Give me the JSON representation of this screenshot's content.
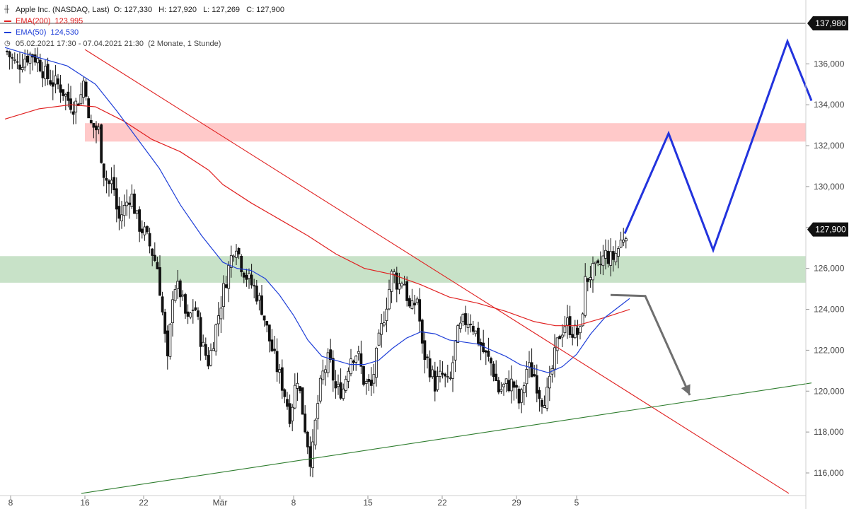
{
  "header": {
    "title": "Apple Inc. (NASDAQ, Last)",
    "ohlc": {
      "open": "O: 127,330",
      "high": "H: 127,920",
      "low": "L: 127,269",
      "close": "C: 127,900"
    },
    "ema200": {
      "label": "EMA(200)",
      "value": "123,995",
      "color": "#e02020"
    },
    "ema50": {
      "label": "EMA(50)",
      "value": "124,530",
      "color": "#1f3fd8"
    },
    "range": "05.02.2021 17:30 - 07.04.2021 21:30",
    "period": "(2 Monate, 1 Stunde)"
  },
  "price_tags": {
    "top": "137,980",
    "last": "127,900"
  },
  "colors": {
    "resistance_zone": "#ffc9c9",
    "support_zone": "#c8e2c8",
    "downtrend": "#e02020",
    "uptrend": "#2e7d2e",
    "bull_projection": "#2233dd",
    "bear_projection": "#6f6f6f",
    "candles": "#111111",
    "tag_bg": "#111111"
  },
  "chart_data": {
    "type": "line",
    "instrument": "Apple Inc. (NASDAQ, Last)",
    "ylim": [
      115000,
      138500
    ],
    "yticks": [
      116000,
      118000,
      120000,
      122000,
      124000,
      126000,
      128000,
      130000,
      132000,
      134000,
      136000
    ],
    "ytick_labels": [
      "116,000",
      "118,000",
      "120,000",
      "122,000",
      "124,000",
      "126,000",
      "128,000",
      "130,000",
      "132,000",
      "134,000",
      "136,000"
    ],
    "xticks": [
      {
        "label": "8",
        "t": 0
      },
      {
        "label": "16",
        "t": 105
      },
      {
        "label": "22",
        "t": 188
      },
      {
        "label": "Mär",
        "t": 296
      },
      {
        "label": "8",
        "t": 400
      },
      {
        "label": "15",
        "t": 505
      },
      {
        "label": "22",
        "t": 610
      },
      {
        "label": "29",
        "t": 715
      },
      {
        "label": "5",
        "t": 800
      }
    ],
    "t_range": [
      -8,
      1132
    ],
    "zones": [
      {
        "name": "resistance",
        "y0": 132200,
        "y1": 133100
      },
      {
        "name": "support",
        "y0": 125300,
        "y1": 126600
      }
    ],
    "reference_line": 137980,
    "close_path": [
      [
        -5,
        136600
      ],
      [
        0,
        136300
      ],
      [
        10,
        135900
      ],
      [
        20,
        136300
      ],
      [
        30,
        136500
      ],
      [
        40,
        136100
      ],
      [
        50,
        135400
      ],
      [
        60,
        135100
      ],
      [
        70,
        134900
      ],
      [
        80,
        134300
      ],
      [
        90,
        133900
      ],
      [
        100,
        134500
      ],
      [
        105,
        135600
      ],
      [
        110,
        133100
      ],
      [
        118,
        132900
      ],
      [
        125,
        132700
      ],
      [
        130,
        130900
      ],
      [
        138,
        130100
      ],
      [
        145,
        130200
      ],
      [
        152,
        128300
      ],
      [
        160,
        128900
      ],
      [
        170,
        129700
      ],
      [
        180,
        128200
      ],
      [
        190,
        127700
      ],
      [
        200,
        126800
      ],
      [
        208,
        126000
      ],
      [
        215,
        123700
      ],
      [
        222,
        121300
      ],
      [
        230,
        125300
      ],
      [
        240,
        124800
      ],
      [
        250,
        123300
      ],
      [
        260,
        124300
      ],
      [
        270,
        122300
      ],
      [
        280,
        121400
      ],
      [
        290,
        123100
      ],
      [
        300,
        124800
      ],
      [
        310,
        126300
      ],
      [
        318,
        127400
      ],
      [
        325,
        126300
      ],
      [
        335,
        125500
      ],
      [
        345,
        125000
      ],
      [
        355,
        124100
      ],
      [
        365,
        122600
      ],
      [
        375,
        121300
      ],
      [
        385,
        120200
      ],
      [
        395,
        118800
      ],
      [
        405,
        120800
      ],
      [
        415,
        118500
      ],
      [
        425,
        116400
      ],
      [
        432,
        118900
      ],
      [
        440,
        120700
      ],
      [
        450,
        121600
      ],
      [
        460,
        120000
      ],
      [
        470,
        120100
      ],
      [
        480,
        121700
      ],
      [
        490,
        121900
      ],
      [
        500,
        120400
      ],
      [
        510,
        120200
      ],
      [
        520,
        122300
      ],
      [
        530,
        124100
      ],
      [
        540,
        125900
      ],
      [
        548,
        125100
      ],
      [
        555,
        125600
      ],
      [
        565,
        123800
      ],
      [
        575,
        124600
      ],
      [
        582,
        122000
      ],
      [
        590,
        121400
      ],
      [
        600,
        120300
      ],
      [
        610,
        120800
      ],
      [
        620,
        120200
      ],
      [
        630,
        122600
      ],
      [
        640,
        123400
      ],
      [
        650,
        123500
      ],
      [
        660,
        122600
      ],
      [
        670,
        121800
      ],
      [
        680,
        121300
      ],
      [
        690,
        120000
      ],
      [
        700,
        120300
      ],
      [
        710,
        120400
      ],
      [
        720,
        119300
      ],
      [
        730,
        121200
      ],
      [
        740,
        120800
      ],
      [
        750,
        119600
      ],
      [
        760,
        119900
      ],
      [
        765,
        121000
      ],
      [
        775,
        122700
      ],
      [
        785,
        123400
      ],
      [
        795,
        122900
      ],
      [
        805,
        122800
      ],
      [
        812,
        125300
      ],
      [
        820,
        125800
      ],
      [
        830,
        125900
      ],
      [
        840,
        126700
      ],
      [
        850,
        126400
      ],
      [
        858,
        126900
      ],
      [
        865,
        127500
      ],
      [
        870,
        127900
      ]
    ],
    "ohlc_last": {
      "open": 127330,
      "high": 127920,
      "low": 127269,
      "close": 127900
    },
    "series": [
      {
        "name": "EMA(200)",
        "last": 123995,
        "points": [
          [
            -8,
            133300
          ],
          [
            40,
            133800
          ],
          [
            85,
            134000
          ],
          [
            120,
            133900
          ],
          [
            160,
            133200
          ],
          [
            200,
            132300
          ],
          [
            240,
            131700
          ],
          [
            280,
            130800
          ],
          [
            300,
            130100
          ],
          [
            340,
            129200
          ],
          [
            380,
            128400
          ],
          [
            420,
            127600
          ],
          [
            460,
            126700
          ],
          [
            500,
            126000
          ],
          [
            540,
            125700
          ],
          [
            580,
            125200
          ],
          [
            620,
            124600
          ],
          [
            660,
            124300
          ],
          [
            700,
            123900
          ],
          [
            740,
            123400
          ],
          [
            770,
            123200
          ],
          [
            800,
            123200
          ],
          [
            840,
            123600
          ],
          [
            875,
            123995
          ]
        ]
      },
      {
        "name": "EMA(50)",
        "last": 124530,
        "points": [
          [
            -8,
            136800
          ],
          [
            40,
            136300
          ],
          [
            80,
            135900
          ],
          [
            120,
            135000
          ],
          [
            150,
            133700
          ],
          [
            180,
            132300
          ],
          [
            210,
            130900
          ],
          [
            240,
            129100
          ],
          [
            270,
            127600
          ],
          [
            300,
            126300
          ],
          [
            320,
            126000
          ],
          [
            340,
            125900
          ],
          [
            360,
            125500
          ],
          [
            380,
            124700
          ],
          [
            400,
            123700
          ],
          [
            420,
            122500
          ],
          [
            440,
            121700
          ],
          [
            460,
            121500
          ],
          [
            480,
            121300
          ],
          [
            500,
            121300
          ],
          [
            520,
            121500
          ],
          [
            540,
            122100
          ],
          [
            560,
            122600
          ],
          [
            580,
            122900
          ],
          [
            600,
            122800
          ],
          [
            620,
            122500
          ],
          [
            640,
            122400
          ],
          [
            660,
            122300
          ],
          [
            680,
            122000
          ],
          [
            700,
            121700
          ],
          [
            720,
            121300
          ],
          [
            740,
            121100
          ],
          [
            760,
            120900
          ],
          [
            780,
            121200
          ],
          [
            800,
            121800
          ],
          [
            820,
            122800
          ],
          [
            840,
            123600
          ],
          [
            875,
            124530
          ]
        ]
      }
    ],
    "annotations": [
      {
        "name": "downtrend-line",
        "points": [
          [
            105,
            136700
          ],
          [
            1100,
            115000
          ]
        ]
      },
      {
        "name": "uptrend-line",
        "points": [
          [
            100,
            115000
          ],
          [
            1132,
            120400
          ]
        ]
      },
      {
        "name": "bullish-projection",
        "points": [
          [
            868,
            127700
          ],
          [
            930,
            132600
          ],
          [
            993,
            126900
          ],
          [
            1098,
            137100
          ],
          [
            1132,
            134200
          ]
        ]
      },
      {
        "name": "bearish-projection",
        "points": [
          [
            848,
            124700
          ],
          [
            897,
            124650
          ],
          [
            960,
            119800
          ]
        ]
      }
    ],
    "last_price": 127900
  }
}
